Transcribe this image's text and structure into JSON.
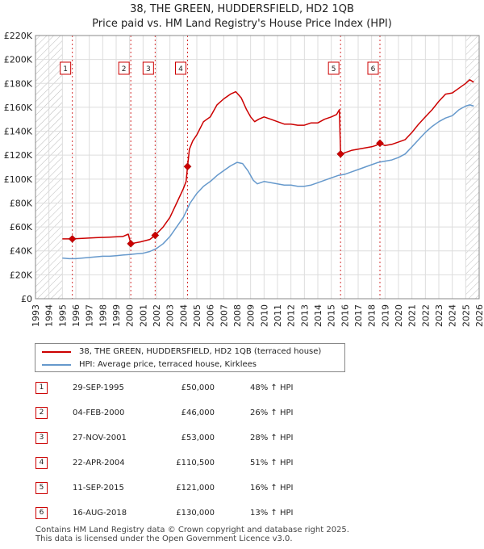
{
  "title": {
    "line1": "38, THE GREEN, HUDDERSFIELD, HD2 1QB",
    "line2": "Price paid vs. HM Land Registry's House Price Index (HPI)"
  },
  "colors": {
    "property": "#cc0000",
    "hpi": "#6699cc",
    "hatch": "#bbbbbb",
    "grid": "#dddddd"
  },
  "chart_data": {
    "type": "line",
    "xlim": [
      1993,
      2026
    ],
    "ylim": [
      0,
      220000
    ],
    "x_ticks": [
      1993,
      1994,
      1995,
      1996,
      1997,
      1998,
      1999,
      2000,
      2001,
      2002,
      2003,
      2004,
      2005,
      2006,
      2007,
      2008,
      2009,
      2010,
      2011,
      2012,
      2013,
      2014,
      2015,
      2016,
      2017,
      2018,
      2019,
      2020,
      2021,
      2022,
      2023,
      2024,
      2025,
      2026
    ],
    "y_ticks": [
      {
        "value": 0,
        "label": "£0"
      },
      {
        "value": 20000,
        "label": "£20K"
      },
      {
        "value": 40000,
        "label": "£40K"
      },
      {
        "value": 60000,
        "label": "£60K"
      },
      {
        "value": 80000,
        "label": "£80K"
      },
      {
        "value": 100000,
        "label": "£100K"
      },
      {
        "value": 120000,
        "label": "£120K"
      },
      {
        "value": 140000,
        "label": "£140K"
      },
      {
        "value": 160000,
        "label": "£160K"
      },
      {
        "value": 180000,
        "label": "£180K"
      },
      {
        "value": 200000,
        "label": "£200K"
      },
      {
        "value": 220000,
        "label": "£220K"
      }
    ],
    "hatched_before": 1995.0,
    "hatched_after": 2025.0,
    "series": [
      {
        "name": "38, THE GREEN, HUDDERSFIELD, HD2 1QB (terraced house)",
        "points": [
          [
            1995.0,
            50000
          ],
          [
            1995.74,
            50000
          ],
          [
            1996.5,
            50500
          ],
          [
            1997.5,
            51000
          ],
          [
            1998.5,
            51500
          ],
          [
            1999.5,
            52000
          ],
          [
            1999.9,
            54000
          ],
          [
            2000.09,
            46000
          ],
          [
            2000.8,
            47500
          ],
          [
            2001.5,
            49500
          ],
          [
            2001.9,
            53000
          ],
          [
            2002.5,
            60000
          ],
          [
            2003.0,
            68000
          ],
          [
            2003.5,
            80000
          ],
          [
            2004.0,
            92000
          ],
          [
            2004.2,
            98000
          ],
          [
            2004.31,
            110500
          ],
          [
            2004.45,
            125000
          ],
          [
            2004.7,
            132000
          ],
          [
            2005.0,
            137000
          ],
          [
            2005.5,
            148000
          ],
          [
            2006.0,
            152000
          ],
          [
            2006.5,
            162000
          ],
          [
            2007.0,
            167000
          ],
          [
            2007.5,
            171000
          ],
          [
            2007.9,
            173000
          ],
          [
            2008.3,
            168000
          ],
          [
            2008.7,
            158000
          ],
          [
            2009.0,
            152000
          ],
          [
            2009.3,
            148000
          ],
          [
            2009.6,
            150000
          ],
          [
            2010.0,
            152000
          ],
          [
            2010.5,
            150000
          ],
          [
            2011.0,
            148000
          ],
          [
            2011.5,
            146000
          ],
          [
            2012.0,
            146000
          ],
          [
            2012.5,
            145000
          ],
          [
            2013.0,
            145000
          ],
          [
            2013.5,
            147000
          ],
          [
            2014.0,
            147000
          ],
          [
            2014.5,
            150000
          ],
          [
            2015.0,
            152000
          ],
          [
            2015.4,
            154000
          ],
          [
            2015.6,
            158000
          ],
          [
            2015.69,
            121000
          ],
          [
            2016.0,
            122000
          ],
          [
            2016.5,
            124000
          ],
          [
            2017.0,
            125000
          ],
          [
            2017.5,
            126000
          ],
          [
            2018.0,
            127000
          ],
          [
            2018.3,
            128000
          ],
          [
            2018.62,
            130000
          ],
          [
            2019.0,
            128000
          ],
          [
            2019.5,
            129000
          ],
          [
            2020.0,
            131000
          ],
          [
            2020.5,
            133000
          ],
          [
            2021.0,
            139000
          ],
          [
            2021.5,
            146000
          ],
          [
            2022.0,
            152000
          ],
          [
            2022.5,
            158000
          ],
          [
            2023.0,
            165000
          ],
          [
            2023.5,
            171000
          ],
          [
            2024.0,
            172000
          ],
          [
            2024.5,
            176000
          ],
          [
            2025.0,
            180000
          ],
          [
            2025.3,
            183000
          ],
          [
            2025.6,
            181000
          ]
        ]
      },
      {
        "name": "HPI: Average price, terraced house, Kirklees",
        "points": [
          [
            1995.0,
            34000
          ],
          [
            1995.5,
            33500
          ],
          [
            1996.0,
            33500
          ],
          [
            1996.5,
            34000
          ],
          [
            1997.0,
            34500
          ],
          [
            1997.5,
            35000
          ],
          [
            1998.0,
            35500
          ],
          [
            1998.5,
            35500
          ],
          [
            1999.0,
            36000
          ],
          [
            1999.5,
            36500
          ],
          [
            2000.0,
            37000
          ],
          [
            2000.5,
            37500
          ],
          [
            2001.0,
            38000
          ],
          [
            2001.5,
            39500
          ],
          [
            2002.0,
            42000
          ],
          [
            2002.5,
            46000
          ],
          [
            2003.0,
            52000
          ],
          [
            2003.5,
            60000
          ],
          [
            2004.0,
            68000
          ],
          [
            2004.5,
            80000
          ],
          [
            2005.0,
            88000
          ],
          [
            2005.5,
            94000
          ],
          [
            2006.0,
            98000
          ],
          [
            2006.5,
            103000
          ],
          [
            2007.0,
            107000
          ],
          [
            2007.5,
            111000
          ],
          [
            2008.0,
            114000
          ],
          [
            2008.4,
            113000
          ],
          [
            2008.8,
            107000
          ],
          [
            2009.2,
            99000
          ],
          [
            2009.5,
            96000
          ],
          [
            2010.0,
            98000
          ],
          [
            2010.5,
            97000
          ],
          [
            2011.0,
            96000
          ],
          [
            2011.5,
            95000
          ],
          [
            2012.0,
            95000
          ],
          [
            2012.5,
            94000
          ],
          [
            2013.0,
            94000
          ],
          [
            2013.5,
            95000
          ],
          [
            2014.0,
            97000
          ],
          [
            2014.5,
            99000
          ],
          [
            2015.0,
            101000
          ],
          [
            2015.5,
            103000
          ],
          [
            2016.0,
            104000
          ],
          [
            2016.5,
            106000
          ],
          [
            2017.0,
            108000
          ],
          [
            2017.5,
            110000
          ],
          [
            2018.0,
            112000
          ],
          [
            2018.5,
            114000
          ],
          [
            2019.0,
            115000
          ],
          [
            2019.5,
            116000
          ],
          [
            2020.0,
            118000
          ],
          [
            2020.5,
            121000
          ],
          [
            2021.0,
            127000
          ],
          [
            2021.5,
            133000
          ],
          [
            2022.0,
            139000
          ],
          [
            2022.5,
            144000
          ],
          [
            2023.0,
            148000
          ],
          [
            2023.5,
            151000
          ],
          [
            2024.0,
            153000
          ],
          [
            2024.5,
            158000
          ],
          [
            2025.0,
            161000
          ],
          [
            2025.3,
            162000
          ],
          [
            2025.6,
            161000
          ]
        ]
      }
    ],
    "sales": [
      {
        "id": "1",
        "x": 1995.74,
        "price": 50000
      },
      {
        "id": "2",
        "x": 2000.09,
        "price": 46000
      },
      {
        "id": "3",
        "x": 2001.9,
        "price": 53000
      },
      {
        "id": "4",
        "x": 2004.31,
        "price": 110500
      },
      {
        "id": "5",
        "x": 2015.69,
        "price": 121000
      },
      {
        "id": "6",
        "x": 2018.62,
        "price": 130000
      }
    ]
  },
  "legend": {
    "property": "38, THE GREEN, HUDDERSFIELD, HD2 1QB (terraced house)",
    "hpi": "HPI: Average price, terraced house, Kirklees"
  },
  "sales_table": [
    {
      "id": "1",
      "date": "29-SEP-1995",
      "price": "£50,000",
      "hpi": "48% ↑ HPI"
    },
    {
      "id": "2",
      "date": "04-FEB-2000",
      "price": "£46,000",
      "hpi": "26% ↑ HPI"
    },
    {
      "id": "3",
      "date": "27-NOV-2001",
      "price": "£53,000",
      "hpi": "28% ↑ HPI"
    },
    {
      "id": "4",
      "date": "22-APR-2004",
      "price": "£110,500",
      "hpi": "51% ↑ HPI"
    },
    {
      "id": "5",
      "date": "11-SEP-2015",
      "price": "£121,000",
      "hpi": "16% ↑ HPI"
    },
    {
      "id": "6",
      "date": "16-AUG-2018",
      "price": "£130,000",
      "hpi": "13% ↑ HPI"
    }
  ],
  "footer": {
    "line1": "Contains HM Land Registry data © Crown copyright and database right 2025.",
    "line2": "This data is licensed under the Open Government Licence v3.0."
  }
}
